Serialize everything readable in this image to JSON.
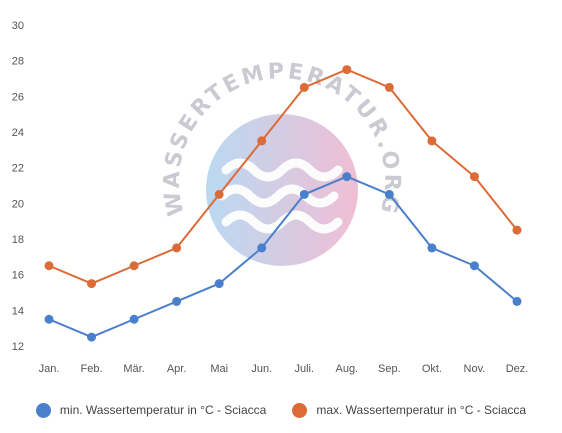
{
  "chart_data": {
    "type": "line",
    "title": "",
    "xlabel": "",
    "ylabel": "",
    "categories": [
      "Jan.",
      "Feb.",
      "Mär.",
      "Apr.",
      "Mai",
      "Jun.",
      "Juli.",
      "Aug.",
      "Sep.",
      "Okt.",
      "Nov.",
      "Dez."
    ],
    "yticks": [
      "12",
      "14",
      "16",
      "18",
      "20",
      "22",
      "24",
      "26",
      "28",
      "30"
    ],
    "ylim": [
      12,
      30
    ],
    "grid": false,
    "legend_position": "bottom",
    "series": [
      {
        "name": "min. Wassertemperatur in °C - Sciacca",
        "color": "#4a7fcb",
        "values": [
          13.5,
          12.5,
          13.5,
          14.5,
          15.5,
          17.5,
          20.5,
          21.5,
          20.5,
          17.5,
          16.5,
          14.5
        ]
      },
      {
        "name": "max. Wassertemperatur in °C - Sciacca",
        "color": "#dc6b37",
        "values": [
          16.5,
          15.5,
          16.5,
          17.5,
          20.5,
          23.5,
          26.5,
          27.5,
          26.5,
          23.5,
          21.5,
          18.5
        ]
      }
    ]
  },
  "watermark": {
    "text": "WASSERTEMPERATUR.ORG"
  }
}
